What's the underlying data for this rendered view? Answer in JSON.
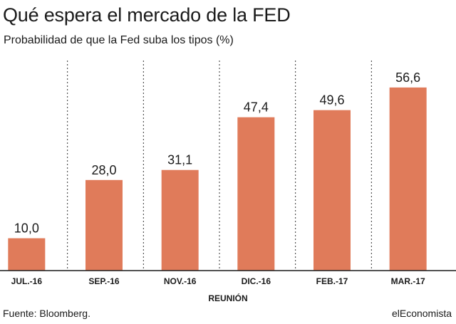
{
  "header": {
    "title": "Qué espera el mercado de la FED",
    "subtitle": "Probabilidad de que la Fed suba los tipos (%)"
  },
  "footer": {
    "source": "Fuente: Bloomberg.",
    "brand": "elEconomista"
  },
  "colors": {
    "bar": "#e07b5a",
    "axis": "#1a1a1a",
    "divider": "#333333",
    "text": "#1a1a1a"
  },
  "chart_data": {
    "type": "bar",
    "title": "Qué espera el mercado de la FED",
    "subtitle": "Probabilidad de que la Fed suba los tipos (%)",
    "xlabel": "REUNIÓN",
    "ylabel": "",
    "categories": [
      "JUL.-16",
      "SEP.-16",
      "NOV.-16",
      "DIC.-16",
      "FEB.-17",
      "MAR.-17"
    ],
    "values": [
      10.0,
      28.0,
      31.1,
      47.4,
      49.6,
      56.6
    ],
    "value_labels": [
      "10,0",
      "28,0",
      "31,1",
      "47,4",
      "49,6",
      "56,6"
    ],
    "ylim": [
      0,
      60
    ],
    "grid": false,
    "legend": "none",
    "vertical_dividers": "dotted between categories"
  }
}
